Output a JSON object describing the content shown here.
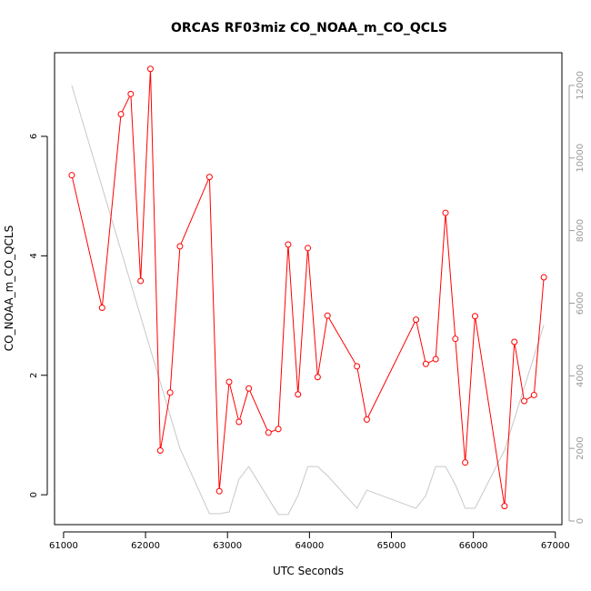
{
  "chart_data": {
    "type": "line",
    "title": "ORCAS RF03miz CO_NOAA_m_CO_QCLS",
    "xlabel": "UTC Seconds",
    "ylabel": "CO_NOAA_m_CO_QCLS",
    "xlim": [
      60890,
      67080
    ],
    "ylim": [
      -0.5,
      7.4
    ],
    "y2lim": [
      -100,
      12900
    ],
    "x_ticks": [
      61000,
      62000,
      63000,
      64000,
      65000,
      66000,
      67000
    ],
    "y_ticks": [
      0,
      2,
      4,
      6
    ],
    "y2_ticks": [
      0,
      2000,
      4000,
      6000,
      8000,
      10000,
      12000
    ],
    "grid": false,
    "series": [
      {
        "color": "#ff0000",
        "marker": "open-circle",
        "axis": "left",
        "x": [
          61100,
          61470,
          61700,
          61820,
          61940,
          62060,
          62180,
          62300,
          62420,
          62780,
          62900,
          63020,
          63140,
          63260,
          63500,
          63620,
          63740,
          63860,
          63980,
          64100,
          64220,
          64580,
          64700,
          65300,
          65420,
          65540,
          65660,
          65780,
          65900,
          66020,
          66380,
          66500,
          66620,
          66740,
          66860
        ],
        "values": [
          5.35,
          3.13,
          6.37,
          6.71,
          3.58,
          7.13,
          0.74,
          1.71,
          4.16,
          5.32,
          0.06,
          1.89,
          1.22,
          1.78,
          1.04,
          1.1,
          4.19,
          1.68,
          4.13,
          1.97,
          3.0,
          2.15,
          1.26,
          2.93,
          2.19,
          2.27,
          4.72,
          2.61,
          0.54,
          2.99,
          -0.19,
          2.56,
          1.57,
          1.67,
          3.64
        ]
      },
      {
        "color": "#c8c8c8",
        "marker": "none",
        "axis": "right",
        "x": [
          61100,
          62420,
          62780,
          62900,
          63020,
          63140,
          63260,
          63620,
          63740,
          63860,
          63980,
          64100,
          64220,
          64580,
          64700,
          65300,
          65420,
          65540,
          65660,
          65780,
          65900,
          66020,
          66380,
          66860
        ],
        "values": [
          12000,
          2000,
          200,
          200,
          250,
          1150,
          1500,
          180,
          180,
          700,
          1500,
          1500,
          1250,
          350,
          850,
          350,
          700,
          1500,
          1500,
          1000,
          350,
          350,
          1950,
          5400
        ]
      }
    ]
  }
}
